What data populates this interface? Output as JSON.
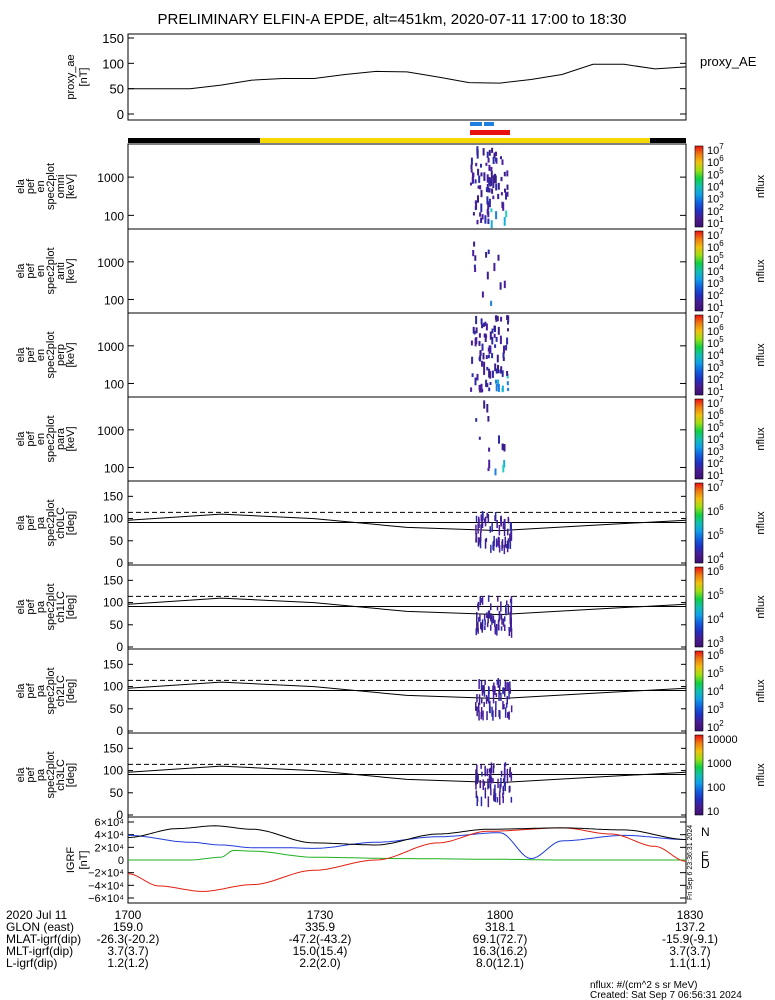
{
  "title": "PRELIMINARY ELFIN-A EPDE, alt=451km, 2020-07-11 17:00 to 18:30",
  "colors": {
    "bar_black": "#000000",
    "bar_yellow": "#f5d800",
    "bar_blue": "#1e7fe0",
    "bar_red": "#e81010",
    "bx": "#1e3cd8",
    "by": "#20b020",
    "bz": "#e02010",
    "btot": "#000000"
  },
  "time_ticks": [
    "1700",
    "1730",
    "1800",
    "1830"
  ],
  "chart_data": [
    {
      "type": "line",
      "panel": "proxy_ae",
      "ylabel": [
        "proxy_ae",
        "[nT]"
      ],
      "series_label": "proxy_AE",
      "ylim": [
        0,
        150
      ],
      "yticks": [
        "150",
        "100",
        "50",
        "0"
      ],
      "x_minutes": [
        0,
        10,
        15,
        20,
        25,
        30,
        35,
        40,
        45,
        50,
        55,
        60,
        65,
        70,
        75,
        80,
        85,
        90
      ],
      "values": [
        50,
        50,
        57,
        67,
        70,
        70,
        78,
        84,
        83,
        73,
        62,
        61,
        68,
        78,
        98,
        98,
        89,
        93
      ]
    },
    {
      "type": "heatmap",
      "panel": "omni",
      "ylabel": [
        "ela",
        "pef",
        "en",
        "spec2plot",
        "omni",
        "[keV]"
      ],
      "yticks": [
        "1000",
        "100"
      ],
      "zlabel": "nflux",
      "ztick_exponents": [
        "7",
        "6",
        "5",
        "4",
        "3",
        "2",
        "1"
      ]
    },
    {
      "type": "heatmap",
      "panel": "anti",
      "ylabel": [
        "ela",
        "pef",
        "en",
        "spec2plot",
        "anti",
        "[keV]"
      ],
      "yticks": [
        "1000",
        "100"
      ],
      "zlabel": "nflux",
      "ztick_exponents": [
        "7",
        "6",
        "5",
        "4",
        "3",
        "2",
        "1"
      ]
    },
    {
      "type": "heatmap",
      "panel": "perp",
      "ylabel": [
        "ela",
        "pef",
        "en",
        "spec2plot",
        "perp",
        "[keV]"
      ],
      "yticks": [
        "1000",
        "100"
      ],
      "zlabel": "nflux",
      "ztick_exponents": [
        "7",
        "6",
        "5",
        "4",
        "3",
        "2",
        "1"
      ]
    },
    {
      "type": "heatmap",
      "panel": "para",
      "ylabel": [
        "ela",
        "pef",
        "en",
        "spec2plot",
        "para",
        "[keV]"
      ],
      "yticks": [
        "1000",
        "100"
      ],
      "zlabel": "nflux",
      "ztick_exponents": [
        "7",
        "6",
        "5",
        "4",
        "3",
        "2",
        "1"
      ]
    },
    {
      "type": "heatmap",
      "panel": "ch0LC",
      "ylabel": [
        "ela",
        "pef",
        "pa",
        "spec2plot",
        "ch0LC",
        "[deg]"
      ],
      "ylim": [
        0,
        180
      ],
      "yticks": [
        "150",
        "100",
        "50",
        "0"
      ],
      "zlabel": "nflux",
      "ztick_exponents": [
        "7",
        "6",
        "5",
        "4"
      ]
    },
    {
      "type": "heatmap",
      "panel": "ch1LC",
      "ylabel": [
        "ela",
        "pef",
        "pa",
        "spec2plot",
        "ch1LC",
        "[deg]"
      ],
      "ylim": [
        0,
        180
      ],
      "yticks": [
        "150",
        "100",
        "50",
        "0"
      ],
      "zlabel": "nflux",
      "ztick_exponents": [
        "6",
        "5",
        "4",
        "3"
      ]
    },
    {
      "type": "heatmap",
      "panel": "ch2LC",
      "ylabel": [
        "ela",
        "pef",
        "pa",
        "spec2plot",
        "ch2LC",
        "[deg]"
      ],
      "ylim": [
        0,
        180
      ],
      "yticks": [
        "150",
        "100",
        "50",
        "0"
      ],
      "zlabel": "nflux",
      "ztick_exponents": [
        "6",
        "5",
        "4",
        "3",
        "2"
      ]
    },
    {
      "type": "heatmap",
      "panel": "ch3LC",
      "ylabel": [
        "ela",
        "pef",
        "pa",
        "spec2plot",
        "ch3LC",
        "[deg]"
      ],
      "ylim": [
        0,
        180
      ],
      "yticks": [
        "150",
        "100",
        "50",
        "0"
      ],
      "zlabel": "nflux",
      "zticks": [
        "10000",
        "1000",
        "100",
        "10"
      ]
    },
    {
      "type": "line",
      "panel": "igrf",
      "ylabel": [
        "IGRF",
        "[nT]"
      ],
      "ylim": [
        -60000,
        60000
      ],
      "yticks": [
        "6×10⁴",
        "4×10⁴",
        "2×10⁴",
        "0",
        "−2×10⁴",
        "−4×10⁴",
        "−6×10⁴"
      ],
      "legend": [
        "N",
        "E",
        "D"
      ],
      "series": [
        {
          "name": "N",
          "x_minutes": [
            0,
            10,
            15,
            20,
            25,
            30,
            40,
            50,
            60,
            65,
            70,
            80,
            90
          ],
          "values": [
            36000,
            26000,
            22000,
            18000,
            18000,
            17000,
            26000,
            34000,
            40000,
            2000,
            28000,
            36000,
            30000
          ]
        },
        {
          "name": "E",
          "x_minutes": [
            0,
            10,
            15,
            17,
            20,
            30,
            45,
            60,
            70,
            80,
            90
          ],
          "values": [
            0,
            0,
            4000,
            14000,
            13000,
            4000,
            2000,
            1000,
            0,
            0,
            0
          ]
        },
        {
          "name": "D",
          "x_minutes": [
            0,
            5,
            12,
            20,
            30,
            40,
            50,
            58,
            70,
            78,
            85,
            90
          ],
          "values": [
            -20000,
            -38000,
            -46000,
            -36000,
            -15000,
            0,
            25000,
            42000,
            47000,
            38000,
            20000,
            -2000
          ]
        },
        {
          "name": "|B|",
          "x_minutes": [
            0,
            8,
            14,
            20,
            30,
            40,
            50,
            58,
            70,
            80,
            90
          ],
          "values": [
            33000,
            46000,
            50000,
            45000,
            25000,
            22000,
            38000,
            45000,
            47000,
            44000,
            30000
          ]
        }
      ]
    }
  ],
  "orbit_table": {
    "rows": [
      {
        "label": "2020 Jul 11",
        "values": [
          "1700",
          "1730",
          "1800",
          "1830"
        ]
      },
      {
        "label": "GLON (east)",
        "values": [
          "159.0",
          "335.9",
          "318.1",
          "137.2"
        ]
      },
      {
        "label": "MLAT-igrf(dip)",
        "values": [
          "-26.3(-20.2)",
          "-47.2(-43.2)",
          "69.1(72.7)",
          "-15.9(-9.1)"
        ]
      },
      {
        "label": "MLT-igrf(dip)",
        "values": [
          "3.7(3.7)",
          "15.0(15.4)",
          "16.3(16.2)",
          "3.7(3.7)"
        ]
      },
      {
        "label": "L-igrf(dip)",
        "values": [
          "1.2(1.2)",
          "2.2(2.0)",
          "8.0(12.1)",
          "1.1(1.1)"
        ]
      }
    ]
  },
  "footer": {
    "units": "nflux: #/(cm^2 s sr MeV)",
    "created": "Created: Sat Sep  7 06:56:31 2024",
    "side_stamp": "Fri Sep  6 23:36:31 2024"
  }
}
